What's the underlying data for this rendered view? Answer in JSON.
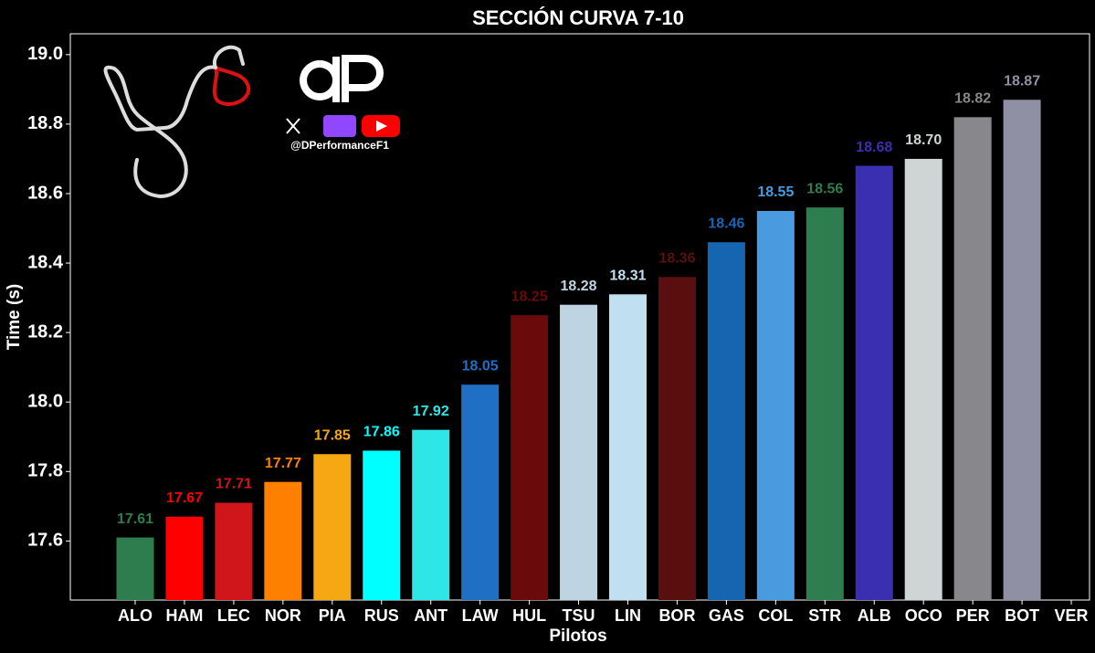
{
  "chart_data": {
    "type": "bar",
    "title": "SECCIÓN CURVA 7-10",
    "x_label": "Pilotos",
    "y_label": "Time (s)",
    "watermark": "@DPerformanceF1",
    "categories": [
      "ALO",
      "HAM",
      "LEC",
      "NOR",
      "PIA",
      "RUS",
      "ANT",
      "LAW",
      "HUL",
      "TSU",
      "LIN",
      "BOR",
      "GAS",
      "COL",
      "STR",
      "ALB",
      "OCO",
      "PER",
      "BOT",
      "VER"
    ],
    "values": [
      17.61,
      17.67,
      17.71,
      17.77,
      17.85,
      17.86,
      17.92,
      18.05,
      18.25,
      18.28,
      18.31,
      18.36,
      18.46,
      18.55,
      18.56,
      18.68,
      18.7,
      18.82,
      18.87,
      null
    ],
    "value_labels": [
      "17.61",
      "17.67",
      "17.71",
      "17.77",
      "17.85",
      "17.86",
      "17.92",
      "18.05",
      "18.25",
      "18.28",
      "18.31",
      "18.36",
      "18.46",
      "18.55",
      "18.56",
      "18.68",
      "18.70",
      "18.82",
      "18.87",
      null
    ],
    "colors": [
      "#2e7d4f",
      "#ff0000",
      "#d0161b",
      "#ff8000",
      "#f5a812",
      "#00ffff",
      "#2ee6e6",
      "#1f6fc4",
      "#6b0a0a",
      "#bed4e0",
      "#c0dff0",
      "#5a0f0f",
      "#1565b0",
      "#4a9ae0",
      "#2e7d4f",
      "#3a2fb0",
      "#cfd4d4",
      "#88888c",
      "#9090a4",
      null
    ],
    "ylim": [
      17.43,
      19.06
    ],
    "yticks": [
      17.6,
      17.8,
      {
        "value": 18.0,
        "label": "18.0"
      },
      18.2,
      18.4,
      18.6,
      18.8,
      {
        "value": 19.0,
        "label": "19.0"
      }
    ]
  }
}
